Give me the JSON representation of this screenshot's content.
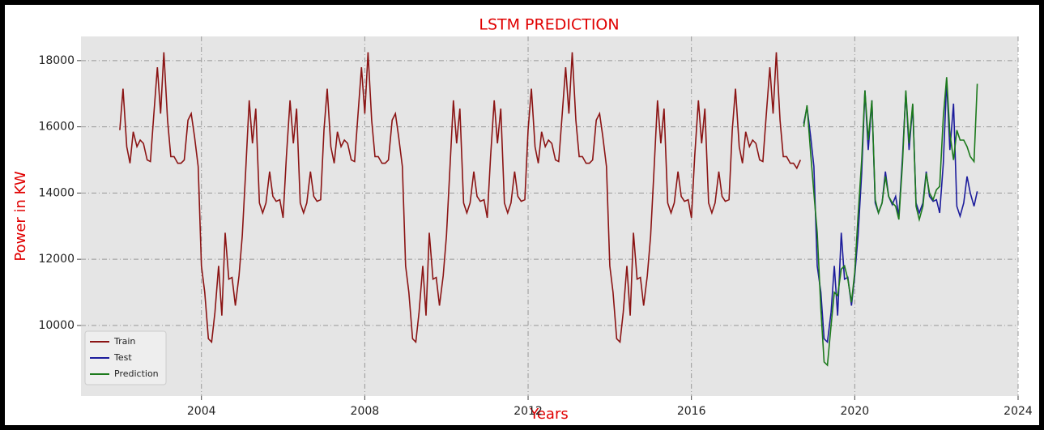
{
  "chart_data": {
    "type": "line",
    "title": "LSTM PREDICTION",
    "x_label": "Years",
    "y_label": "Power in KW",
    "xlim": [
      2001.05,
      2024
    ],
    "ylim": [
      7870,
      18730
    ],
    "xticks": [
      2004,
      2008,
      2012,
      2016,
      2020,
      2024
    ],
    "yticks": [
      10000,
      12000,
      14000,
      16000,
      18000
    ],
    "grid": true,
    "legend": "lower left",
    "series": [
      {
        "name": "Train",
        "color": "#8b1414",
        "x": [
          2002,
          2002.08,
          2002.17,
          2002.25,
          2002.33,
          2002.42,
          2002.5,
          2002.58,
          2002.67,
          2002.75,
          2002.83,
          2002.92,
          2003,
          2003.08,
          2003.17,
          2003.25,
          2003.33,
          2003.42,
          2003.5,
          2003.58,
          2003.67,
          2003.75,
          2003.83,
          2003.92,
          2004,
          2004.08,
          2004.17,
          2004.25,
          2004.33,
          2004.42,
          2004.5,
          2004.58,
          2004.67,
          2004.75,
          2004.83,
          2004.92,
          2005,
          2005.08,
          2005.17,
          2005.25,
          2005.33,
          2005.42,
          2005.5,
          2005.58,
          2005.67,
          2005.75,
          2005.83,
          2005.92,
          2006,
          2006.08,
          2006.17,
          2006.25,
          2006.33,
          2006.42,
          2006.5,
          2006.58,
          2006.67,
          2006.75,
          2006.83,
          2006.92,
          2007,
          2007.08,
          2007.17,
          2007.25,
          2007.33,
          2007.42,
          2007.5,
          2007.58,
          2007.67,
          2007.75,
          2007.83,
          2007.92,
          2008,
          2008.08,
          2008.17,
          2008.25,
          2008.33,
          2008.42,
          2008.5,
          2008.58,
          2008.67,
          2008.75,
          2008.83,
          2008.92,
          2009,
          2009.08,
          2009.17,
          2009.25,
          2009.33,
          2009.42,
          2009.5,
          2009.58,
          2009.67,
          2009.75,
          2009.83,
          2009.92,
          2010,
          2010.08,
          2010.17,
          2010.25,
          2010.33,
          2010.42,
          2010.5,
          2010.58,
          2010.67,
          2010.75,
          2010.83,
          2010.92,
          2011,
          2011.08,
          2011.17,
          2011.25,
          2011.33,
          2011.42,
          2011.5,
          2011.58,
          2011.67,
          2011.75,
          2011.83,
          2011.92,
          2012,
          2012.08,
          2012.17,
          2012.25,
          2012.33,
          2012.42,
          2012.5,
          2012.58,
          2012.67,
          2012.75,
          2012.83,
          2012.92,
          2013,
          2013.08,
          2013.17,
          2013.25,
          2013.33,
          2013.42,
          2013.5,
          2013.58,
          2013.67,
          2013.75,
          2013.83,
          2013.92,
          2014,
          2014.08,
          2014.17,
          2014.25,
          2014.33,
          2014.42,
          2014.5,
          2014.58,
          2014.67,
          2014.75,
          2014.83,
          2014.92,
          2015,
          2015.08,
          2015.17,
          2015.25,
          2015.33,
          2015.42,
          2015.5,
          2015.58,
          2015.67,
          2015.75,
          2015.83,
          2015.92,
          2016,
          2016.08,
          2016.17,
          2016.25,
          2016.33,
          2016.42,
          2016.5,
          2016.58,
          2016.67,
          2016.75,
          2016.83,
          2016.92,
          2017,
          2017.08,
          2017.17,
          2017.25,
          2017.33,
          2017.42,
          2017.5,
          2017.58,
          2017.67,
          2017.75,
          2017.83,
          2017.92,
          2018,
          2018.08,
          2018.17,
          2018.25,
          2018.33,
          2018.42,
          2018.5,
          2018.58,
          2018.67
        ],
        "values": [
          15900,
          17150,
          15400,
          14900,
          15850,
          15400,
          15600,
          15500,
          15000,
          14950,
          16300,
          17800,
          16400,
          18250,
          16200,
          15100,
          15100,
          14900,
          14900,
          15000,
          16200,
          16400,
          15700,
          14800,
          11800,
          11000,
          9600,
          9500,
          10400,
          11800,
          10300,
          12800,
          11400,
          11450,
          10600,
          11500,
          12700,
          14600,
          16800,
          15500,
          16550,
          13700,
          13400,
          13700,
          14650,
          13900,
          13750,
          13800,
          13250,
          15100,
          16800,
          15500,
          16550,
          13700,
          13400,
          13700,
          14650,
          13900,
          13750,
          13800,
          15900,
          17150,
          15400,
          14900,
          15850,
          15400,
          15600,
          15500,
          15000,
          14950,
          16300,
          17800,
          16400,
          18250,
          16200,
          15100,
          15100,
          14900,
          14900,
          15000,
          16200,
          16400,
          15700,
          14800,
          11800,
          11000,
          9600,
          9500,
          10400,
          11800,
          10300,
          12800,
          11400,
          11450,
          10600,
          11500,
          12700,
          14600,
          16800,
          15500,
          16550,
          13700,
          13400,
          13700,
          14650,
          13900,
          13750,
          13800,
          13250,
          15100,
          16800,
          15500,
          16550,
          13700,
          13400,
          13700,
          14650,
          13900,
          13750,
          13800,
          15900,
          17150,
          15400,
          14900,
          15850,
          15400,
          15600,
          15500,
          15000,
          14950,
          16300,
          17800,
          16400,
          18250,
          16200,
          15100,
          15100,
          14900,
          14900,
          15000,
          16200,
          16400,
          15700,
          14800,
          11800,
          11000,
          9600,
          9500,
          10400,
          11800,
          10300,
          12800,
          11400,
          11450,
          10600,
          11500,
          12700,
          14600,
          16800,
          15500,
          16550,
          13700,
          13400,
          13700,
          14650,
          13900,
          13750,
          13800,
          13250,
          15100,
          16800,
          15500,
          16550,
          13700,
          13400,
          13700,
          14650,
          13900,
          13750,
          13800,
          15900,
          17150,
          15400,
          14900,
          15850,
          15400,
          15600,
          15500,
          15000,
          14950,
          16300,
          17800,
          16400,
          18250,
          16200,
          15100,
          15100,
          14900,
          14900,
          14750,
          15000
        ]
      },
      {
        "name": "Test",
        "color": "#1c1c9c",
        "x": [
          2018.75,
          2018.83,
          2018.92,
          2019,
          2019.08,
          2019.17,
          2019.25,
          2019.33,
          2019.42,
          2019.5,
          2019.58,
          2019.67,
          2019.75,
          2019.83,
          2019.92,
          2020,
          2020.08,
          2020.17,
          2020.25,
          2020.33,
          2020.42,
          2020.5,
          2020.58,
          2020.67,
          2020.75,
          2020.83,
          2020.92,
          2021,
          2021.08,
          2021.17,
          2021.25,
          2021.33,
          2021.42,
          2021.5,
          2021.58,
          2021.67,
          2021.75,
          2021.83,
          2021.92,
          2022,
          2022.08,
          2022.17,
          2022.25,
          2022.33,
          2022.42,
          2022.5,
          2022.58,
          2022.67,
          2022.75,
          2022.83,
          2022.92,
          2023
        ],
        "values": [
          16100,
          16600,
          15700,
          14800,
          11800,
          11000,
          9600,
          9500,
          10400,
          11800,
          10300,
          12800,
          11400,
          11450,
          10600,
          11500,
          12700,
          14600,
          17100,
          15300,
          16800,
          13700,
          13400,
          13700,
          14650,
          13900,
          13650,
          13900,
          13300,
          15100,
          17050,
          15300,
          16650,
          13700,
          13400,
          13700,
          14650,
          13900,
          13750,
          13800,
          13400,
          14900,
          17400,
          15300,
          16700,
          13600,
          13300,
          13700,
          14500,
          14000,
          13600,
          14050
        ]
      },
      {
        "name": "Prediction",
        "color": "#1c7a1c",
        "x": [
          2018.75,
          2018.83,
          2018.92,
          2019,
          2019.08,
          2019.17,
          2019.25,
          2019.33,
          2019.42,
          2019.5,
          2019.58,
          2019.67,
          2019.75,
          2019.83,
          2019.92,
          2020,
          2020.08,
          2020.17,
          2020.25,
          2020.33,
          2020.42,
          2020.5,
          2020.58,
          2020.67,
          2020.75,
          2020.83,
          2020.92,
          2021,
          2021.08,
          2021.17,
          2021.25,
          2021.33,
          2021.42,
          2021.5,
          2021.58,
          2021.67,
          2021.75,
          2021.83,
          2021.92,
          2022,
          2022.08,
          2022.17,
          2022.25,
          2022.33,
          2022.42,
          2022.5,
          2022.58,
          2022.67,
          2022.75,
          2022.83,
          2022.92,
          2023
        ],
        "values": [
          16000,
          16650,
          15200,
          14000,
          12800,
          10500,
          8900,
          8800,
          10000,
          11000,
          10900,
          11700,
          11800,
          11400,
          10700,
          11600,
          13300,
          15000,
          17100,
          15600,
          16800,
          13800,
          13400,
          13700,
          14500,
          13900,
          13700,
          13600,
          13200,
          14900,
          17100,
          15500,
          16700,
          13600,
          13200,
          13600,
          14600,
          14000,
          13800,
          14100,
          14200,
          16300,
          17500,
          15800,
          15000,
          15900,
          15600,
          15600,
          15400,
          15100,
          14950,
          17300
        ]
      }
    ]
  }
}
